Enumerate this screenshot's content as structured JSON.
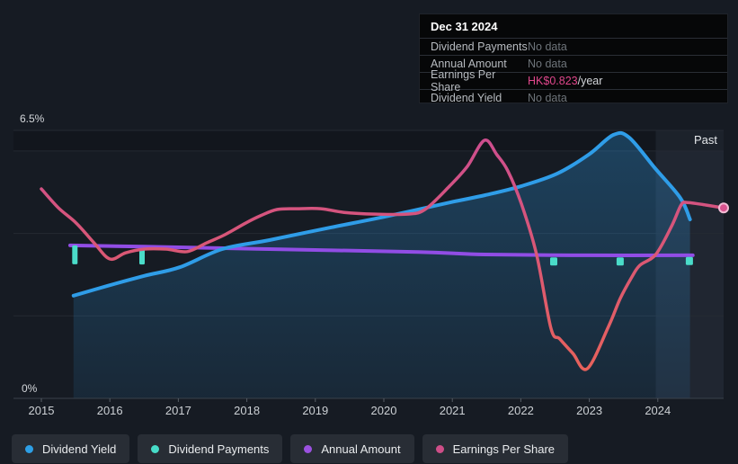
{
  "tooltip": {
    "date": "Dec 31 2024",
    "rows": [
      {
        "label": "Dividend Payments",
        "value": "No data"
      },
      {
        "label": "Annual Amount",
        "value": "No data"
      },
      {
        "label": "Earnings Per Share",
        "value": "HK$0.823",
        "suffix": "/year"
      },
      {
        "label": "Dividend Yield",
        "value": "No data"
      }
    ]
  },
  "axis": {
    "y_top_label": "6.5%",
    "y_bottom_label": "0%",
    "past_label": "Past",
    "years": [
      "2015",
      "2016",
      "2017",
      "2018",
      "2019",
      "2020",
      "2021",
      "2022",
      "2023",
      "2024"
    ]
  },
  "legend": [
    {
      "label": "Dividend Yield",
      "color": "#2d9fe6"
    },
    {
      "label": "Dividend Payments",
      "color": "#47dcc9"
    },
    {
      "label": "Annual Amount",
      "color": "#9b51e0"
    },
    {
      "label": "Earnings Per Share",
      "color": "#ce4e88"
    }
  ],
  "colors": {
    "background": "#161b23",
    "gridline": "#242a33",
    "axis_line": "#3a414b",
    "tick": "#555c64",
    "yield_line": "#2f9de8",
    "yield_area_top": "rgba(47,157,232,0.30)",
    "yield_area_bottom": "rgba(47,157,232,0.10)",
    "annual_amount_line": "#914de5",
    "payments_marker": "#4adcc9",
    "eps_line_top": "#cc4d90",
    "eps_line_bottom": "#ea6455",
    "eps_dot_fill": "#d9538f",
    "eps_dot_ring": "#f2bcd4",
    "past_band": "rgba(154,183,211,0.08)",
    "top_strip": "rgba(0,0,0,0.16)"
  },
  "chart_data": {
    "type": "line",
    "x_axis": {
      "range": [
        2014.6,
        2025.05
      ],
      "ticks": [
        2015,
        2016,
        2017,
        2018,
        2019,
        2020,
        2021,
        2022,
        2023,
        2024
      ]
    },
    "y_axis": {
      "range": [
        0,
        6.5
      ],
      "unit": "%",
      "gridlines_pct": [
        6.5,
        6,
        4,
        2
      ],
      "labeled": {
        "top": "6.5%",
        "bottom": "0%"
      }
    },
    "past_region_start": 2023.97,
    "series": [
      {
        "name": "Dividend Yield",
        "type": "line",
        "area": true,
        "unit": "%",
        "points": [
          [
            2015.47,
            2.49
          ],
          [
            2015.97,
            2.73
          ],
          [
            2016.5,
            2.97
          ],
          [
            2017.02,
            3.18
          ],
          [
            2017.64,
            3.62
          ],
          [
            2018.33,
            3.84
          ],
          [
            2019.21,
            4.14
          ],
          [
            2020.08,
            4.43
          ],
          [
            2020.96,
            4.75
          ],
          [
            2021.48,
            4.93
          ],
          [
            2022.01,
            5.15
          ],
          [
            2022.53,
            5.45
          ],
          [
            2022.99,
            5.91
          ],
          [
            2023.35,
            6.39
          ],
          [
            2023.58,
            6.33
          ],
          [
            2023.96,
            5.58
          ],
          [
            2024.33,
            4.86
          ],
          [
            2024.47,
            4.34
          ]
        ]
      },
      {
        "name": "Annual Amount",
        "type": "line",
        "unit": "axis-position-%",
        "points": [
          [
            2015.42,
            3.71
          ],
          [
            2016.5,
            3.68
          ],
          [
            2018.33,
            3.62
          ],
          [
            2020.5,
            3.55
          ],
          [
            2021.48,
            3.49
          ],
          [
            2023.0,
            3.47
          ],
          [
            2024.51,
            3.47
          ]
        ]
      },
      {
        "name": "Earnings Per Share",
        "type": "line",
        "unit": "axis-position-%",
        "end_value_label": "HK$0.823/year",
        "points": [
          [
            2015.0,
            5.08
          ],
          [
            2015.25,
            4.62
          ],
          [
            2015.51,
            4.25
          ],
          [
            2015.77,
            3.77
          ],
          [
            2016.0,
            3.38
          ],
          [
            2016.23,
            3.53
          ],
          [
            2016.5,
            3.62
          ],
          [
            2016.82,
            3.62
          ],
          [
            2017.13,
            3.56
          ],
          [
            2017.41,
            3.77
          ],
          [
            2017.68,
            3.97
          ],
          [
            2017.98,
            4.25
          ],
          [
            2018.2,
            4.43
          ],
          [
            2018.44,
            4.58
          ],
          [
            2018.73,
            4.6
          ],
          [
            2019.08,
            4.6
          ],
          [
            2019.42,
            4.51
          ],
          [
            2019.87,
            4.47
          ],
          [
            2020.34,
            4.47
          ],
          [
            2020.6,
            4.58
          ],
          [
            2020.96,
            5.15
          ],
          [
            2021.22,
            5.63
          ],
          [
            2021.47,
            6.26
          ],
          [
            2021.65,
            5.91
          ],
          [
            2021.81,
            5.52
          ],
          [
            2022.01,
            4.71
          ],
          [
            2022.23,
            3.49
          ],
          [
            2022.44,
            1.7
          ],
          [
            2022.57,
            1.44
          ],
          [
            2022.76,
            1.09
          ],
          [
            2022.97,
            0.72
          ],
          [
            2023.28,
            1.74
          ],
          [
            2023.45,
            2.42
          ],
          [
            2023.62,
            2.94
          ],
          [
            2023.74,
            3.23
          ],
          [
            2023.97,
            3.49
          ],
          [
            2024.2,
            4.17
          ],
          [
            2024.34,
            4.69
          ],
          [
            2024.43,
            4.75
          ],
          [
            2024.7,
            4.69
          ],
          [
            2024.96,
            4.62
          ]
        ],
        "end_marker": [
          2024.96,
          4.62
        ]
      },
      {
        "name": "Dividend Payments",
        "type": "marker",
        "markers": [
          {
            "x": 2015.49,
            "top": 3.71,
            "w": 6,
            "h": 21
          },
          {
            "x": 2016.47,
            "top": 3.64,
            "w": 6,
            "h": 18
          },
          {
            "x": 2022.48,
            "top": 3.42,
            "w": 8,
            "h": 9
          },
          {
            "x": 2023.45,
            "top": 3.42,
            "w": 8,
            "h": 9
          },
          {
            "x": 2024.46,
            "top": 3.43,
            "w": 8,
            "h": 9
          }
        ]
      }
    ]
  }
}
